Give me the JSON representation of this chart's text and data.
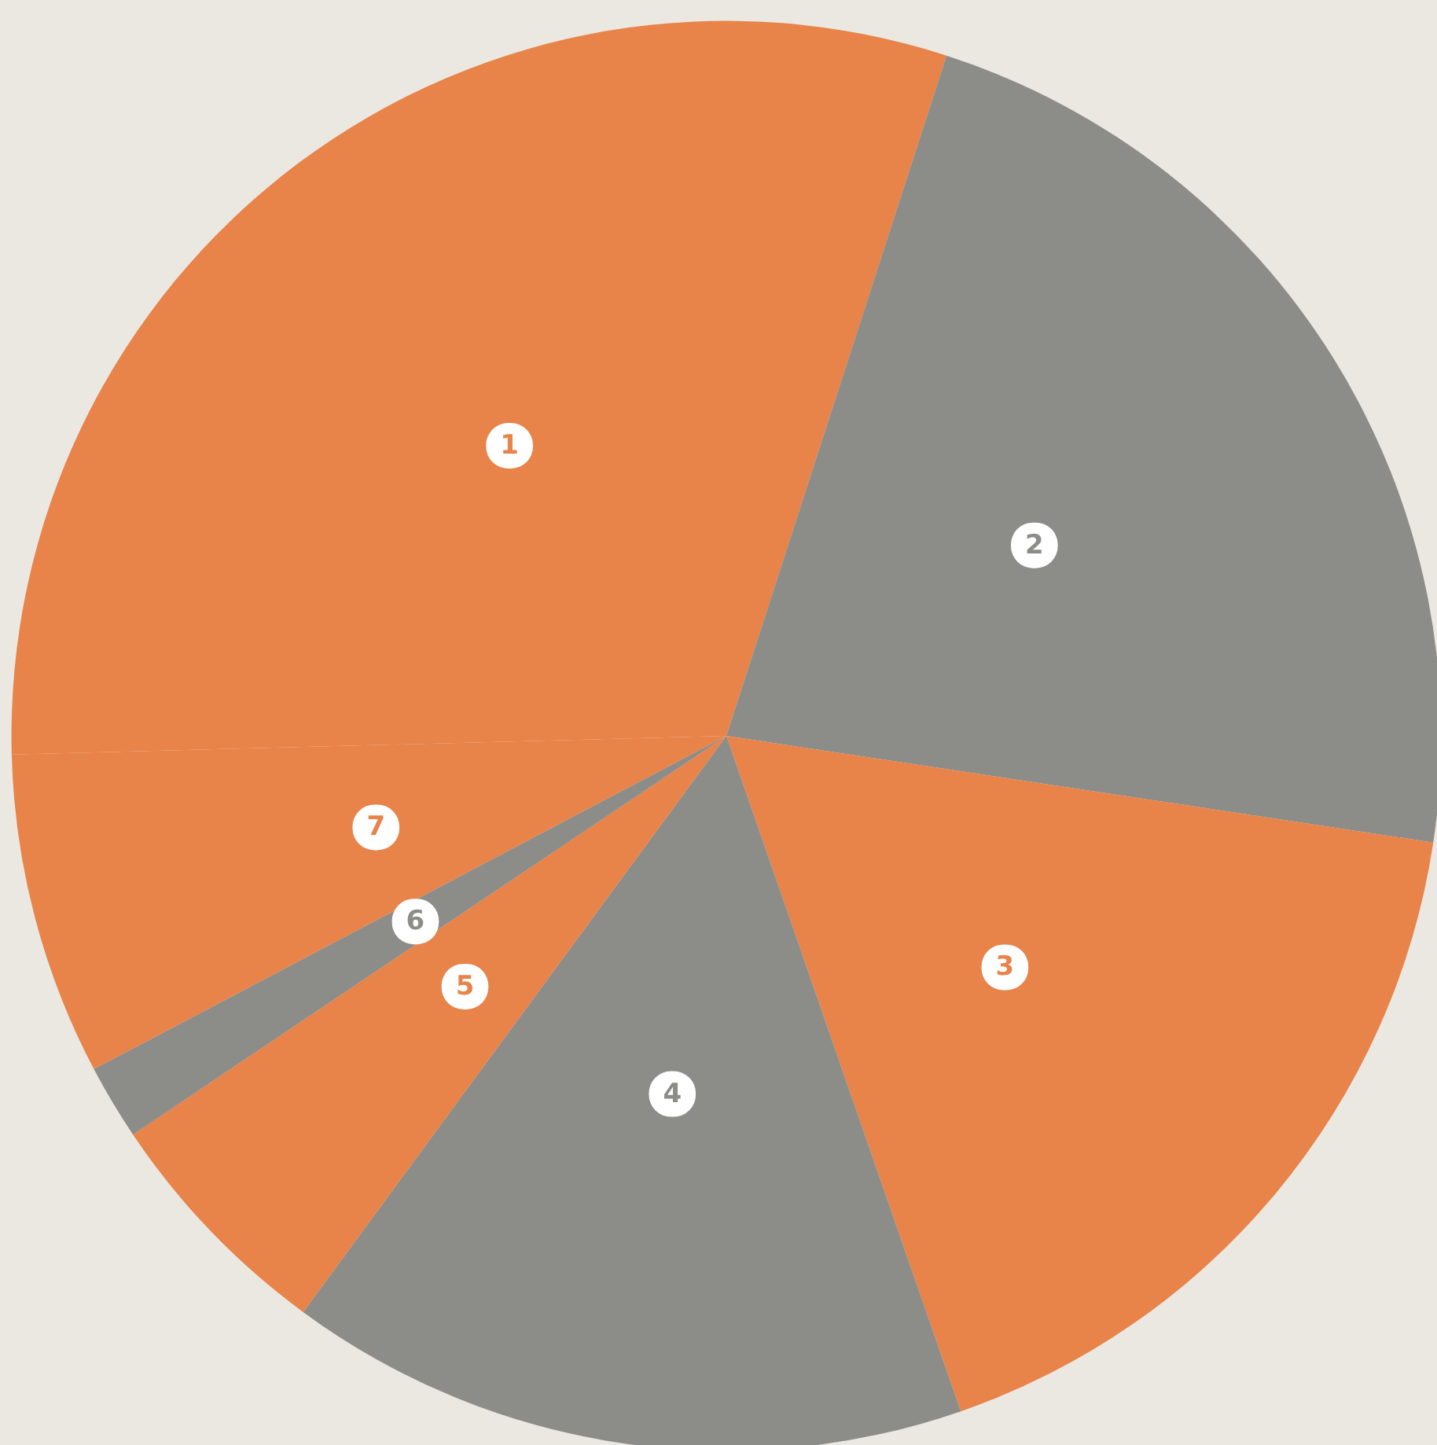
{
  "chart_data": {
    "type": "pie",
    "categories": [
      "1",
      "2",
      "3",
      "4",
      "5",
      "6",
      "7"
    ],
    "values": [
      30.4,
      22.4,
      17.3,
      15.4,
      5.5,
      1.7,
      7.3
    ],
    "colors": [
      "#e8834a",
      "#8c8c88",
      "#e8834a",
      "#8c8c88",
      "#e8834a",
      "#8c8c88",
      "#e8834a"
    ],
    "legend": false
  }
}
